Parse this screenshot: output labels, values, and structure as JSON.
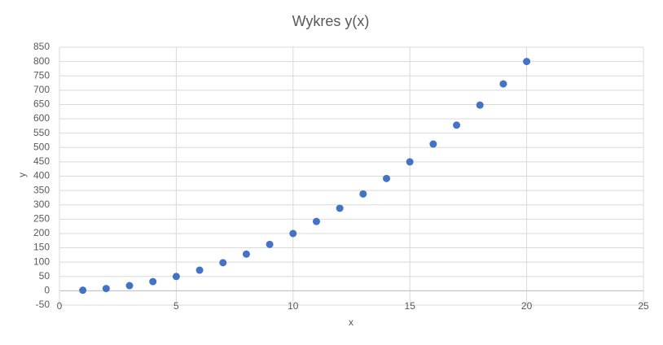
{
  "chart_data": {
    "type": "scatter",
    "title": "Wykres y(x)",
    "x_label": "x",
    "y_label": "y",
    "series": [
      {
        "name": "y",
        "color": "#4472c4",
        "x": [
          1,
          2,
          3,
          4,
          5,
          6,
          7,
          8,
          9,
          10,
          11,
          12,
          13,
          14,
          15,
          16,
          17,
          18,
          19,
          20
        ],
        "values": [
          2,
          8,
          18,
          32,
          50,
          72,
          98,
          128,
          162,
          200,
          242,
          288,
          338,
          392,
          450,
          512,
          578,
          648,
          722,
          800
        ]
      }
    ],
    "xlim": [
      0,
      25
    ],
    "xticks": [
      0,
      5,
      10,
      15,
      20,
      25
    ],
    "ylim": [
      -50,
      850
    ],
    "yticks": [
      -50,
      0,
      50,
      100,
      150,
      200,
      250,
      300,
      350,
      400,
      450,
      500,
      550,
      600,
      650,
      700,
      750,
      800,
      850
    ],
    "grid": true
  }
}
